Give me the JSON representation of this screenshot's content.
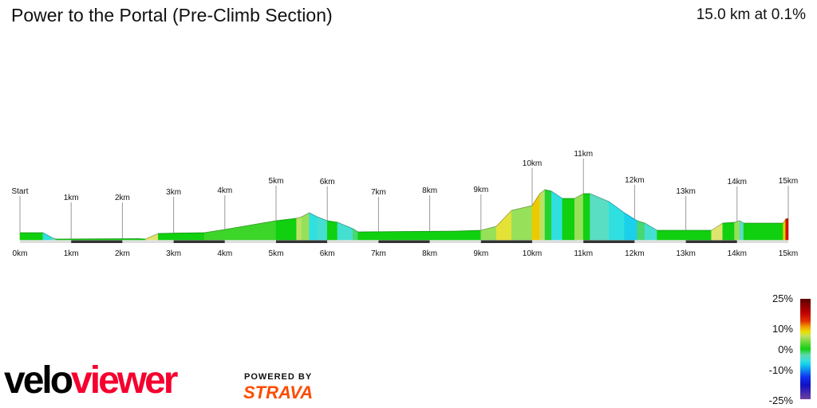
{
  "header": {
    "title": "Power to the Portal (Pre-Climb Section)",
    "summary": "15.0 km at 0.1%"
  },
  "chart_data": {
    "type": "area",
    "title": "Power to the Portal (Pre-Climb Section)",
    "xlabel": "",
    "ylabel": "",
    "xlim": [
      0,
      15
    ],
    "x_unit": "km",
    "x_tick_labels": [
      "0km",
      "1km",
      "2km",
      "3km",
      "4km",
      "5km",
      "6km",
      "7km",
      "8km",
      "9km",
      "10km",
      "11km",
      "12km",
      "13km",
      "14km",
      "15km"
    ],
    "marker_labels": [
      "Start",
      "1km",
      "2km",
      "3km",
      "4km",
      "5km",
      "6km",
      "7km",
      "8km",
      "9km",
      "10km",
      "11km",
      "12km",
      "13km",
      "14km",
      "15km"
    ],
    "profile_columns": [
      "distance_km",
      "relative_elevation",
      "gradient_pct"
    ],
    "profile": [
      [
        0,
        9,
        1
      ],
      [
        0.45,
        9,
        0
      ],
      [
        0.62,
        3,
        -6
      ],
      [
        0.7,
        1,
        -3
      ],
      [
        2.3,
        1.5,
        0.2
      ],
      [
        2.45,
        1,
        -0.5
      ],
      [
        2.7,
        8,
        5
      ],
      [
        3.0,
        8.5,
        1
      ],
      [
        3.6,
        9,
        0.5
      ],
      [
        4.0,
        13,
        2
      ],
      [
        5.0,
        24,
        2
      ],
      [
        5.4,
        27,
        1.5
      ],
      [
        5.5,
        29,
        4
      ],
      [
        5.65,
        34,
        3
      ],
      [
        5.8,
        29,
        -6
      ],
      [
        6.0,
        24,
        -5
      ],
      [
        6.2,
        22,
        0
      ],
      [
        6.5,
        14,
        -5
      ],
      [
        6.6,
        10,
        -2
      ],
      [
        7.5,
        10.5,
        0.5
      ],
      [
        8.5,
        11,
        0.5
      ],
      [
        9.0,
        12,
        1
      ],
      [
        9.3,
        17,
        3
      ],
      [
        9.6,
        37,
        6
      ],
      [
        9.8,
        40,
        3
      ],
      [
        10.0,
        43,
        3
      ],
      [
        10.15,
        58,
        8
      ],
      [
        10.25,
        63,
        4
      ],
      [
        10.38,
        61,
        -1
      ],
      [
        10.59,
        52,
        -6
      ],
      [
        10.83,
        52,
        0.5
      ],
      [
        11.0,
        58,
        3
      ],
      [
        11.13,
        58,
        0
      ],
      [
        11.5,
        48,
        -4
      ],
      [
        11.8,
        34,
        -6
      ],
      [
        12.05,
        24,
        -8
      ],
      [
        12.2,
        21,
        -2
      ],
      [
        12.44,
        12,
        -5
      ],
      [
        13.5,
        12,
        0
      ],
      [
        13.72,
        21,
        5
      ],
      [
        13.95,
        22,
        1
      ],
      [
        14.05,
        24,
        3
      ],
      [
        14.13,
        21,
        -4
      ],
      [
        14.9,
        21,
        0.5
      ],
      [
        14.95,
        26,
        8
      ],
      [
        15.0,
        27,
        15
      ]
    ],
    "legend": {
      "type": "colorbar",
      "placement": "bottom-right",
      "labels": [
        "25%",
        "10%",
        "0%",
        "-10%",
        "-25%"
      ]
    },
    "grid": false
  },
  "branding": {
    "logo_part1": "velo",
    "logo_part2": "viewer",
    "powered_by": "POWERED BY",
    "strava": "STRAVA"
  },
  "colors": {
    "flat": "#10d010",
    "climb": "#e8e000",
    "descent": "#30e0e0",
    "velo": "#000000",
    "viewer": "#f5002f",
    "strava": "#fc4c02"
  }
}
